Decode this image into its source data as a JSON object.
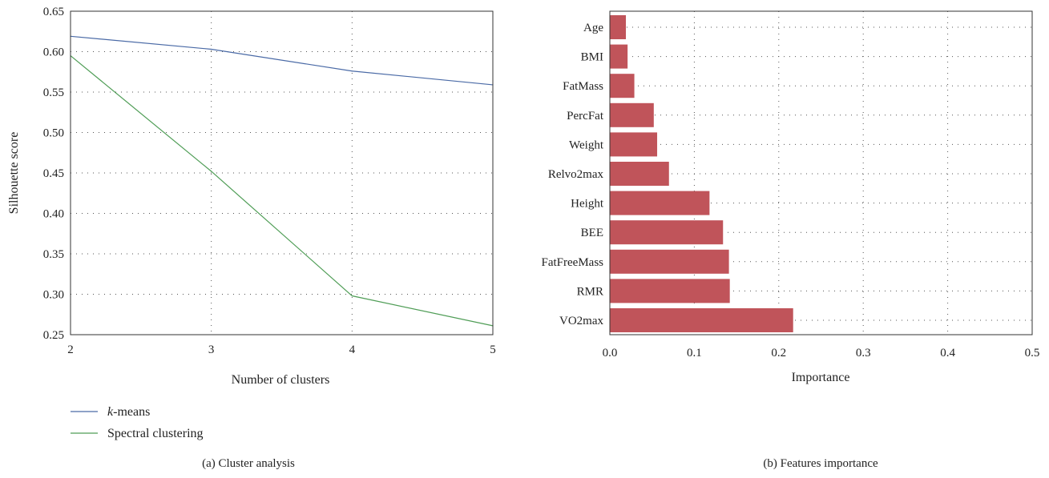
{
  "chart_data": [
    {
      "type": "line",
      "caption": "(a)  Cluster analysis",
      "xlabel": "Number of clusters",
      "ylabel": "Silhouette score",
      "xlim": [
        2,
        5
      ],
      "ylim": [
        0.25,
        0.65
      ],
      "xticks": [
        "2",
        "3",
        "4",
        "5"
      ],
      "yticks": [
        "0.25",
        "0.30",
        "0.35",
        "0.40",
        "0.45",
        "0.50",
        "0.55",
        "0.60",
        "0.65"
      ],
      "grid": true,
      "legend_position": "below",
      "x": [
        2,
        3,
        4,
        5
      ],
      "series": [
        {
          "name": "k-means",
          "name_italic": "k",
          "name_rest": "-means",
          "color": "#4a6aa6",
          "values": [
            0.619,
            0.603,
            0.576,
            0.559
          ]
        },
        {
          "name": "Spectral clustering",
          "color": "#4f9d56",
          "values": [
            0.595,
            0.452,
            0.298,
            0.261
          ]
        }
      ]
    },
    {
      "type": "bar",
      "orientation": "horizontal",
      "caption": "(b)  Features importance",
      "xlabel": "Importance",
      "ylabel": "",
      "xlim": [
        0.0,
        0.5
      ],
      "xticks": [
        "0.0",
        "0.1",
        "0.2",
        "0.3",
        "0.4",
        "0.5"
      ],
      "grid": true,
      "bar_color": "#c0545a",
      "categories": [
        "Age",
        "BMI",
        "FatMass",
        "PercFat",
        "Weight",
        "Relvo2max",
        "Height",
        "BEE",
        "FatFreeMass",
        "RMR",
        "VO2max"
      ],
      "values": [
        0.019,
        0.021,
        0.029,
        0.052,
        0.056,
        0.07,
        0.118,
        0.134,
        0.141,
        0.142,
        0.217
      ]
    }
  ]
}
